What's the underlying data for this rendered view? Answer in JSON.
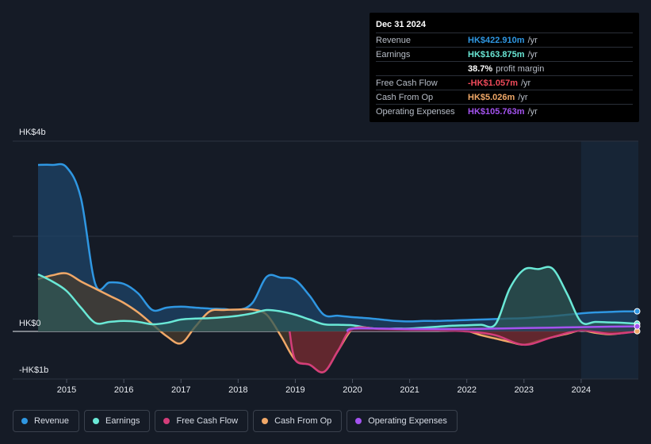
{
  "tooltip": {
    "date": "Dec 31 2024",
    "rows": [
      {
        "label": "Revenue",
        "value": "HK$422.910m",
        "unit": "/yr",
        "color": "#2f97e2"
      },
      {
        "label": "Earnings",
        "value": "HK$163.875m",
        "unit": "/yr",
        "color": "#6ae8d6"
      },
      {
        "label": "",
        "value": "38.7%",
        "unit": "profit margin",
        "color": "#ffffff"
      },
      {
        "label": "Free Cash Flow",
        "value": "-HK$1.057m",
        "unit": "/yr",
        "color": "#ef4a5a"
      },
      {
        "label": "Cash From Op",
        "value": "HK$5.026m",
        "unit": "/yr",
        "color": "#f0a868"
      },
      {
        "label": "Operating Expenses",
        "value": "HK$105.763m",
        "unit": "/yr",
        "color": "#a453f0"
      }
    ]
  },
  "legend": [
    {
      "label": "Revenue",
      "color": "#2f97e2"
    },
    {
      "label": "Earnings",
      "color": "#6ae8d6"
    },
    {
      "label": "Free Cash Flow",
      "color": "#d43d7a"
    },
    {
      "label": "Cash From Op",
      "color": "#f0a868"
    },
    {
      "label": "Operating Expenses",
      "color": "#a453f0"
    }
  ],
  "chart_data": {
    "type": "area",
    "title": "",
    "xlabel": "",
    "ylabel": "",
    "y_axis_labels": [
      "HK$4b",
      "HK$0",
      "-HK$1b"
    ],
    "y_axis_label_values": [
      4,
      0,
      -1
    ],
    "ylim": [
      -1,
      4
    ],
    "xlim": [
      2014.5,
      2025.0
    ],
    "x_ticks": [
      2015,
      2016,
      2017,
      2018,
      2019,
      2020,
      2021,
      2022,
      2023,
      2024
    ],
    "x_tick_labels": [
      "2015",
      "2016",
      "2017",
      "2018",
      "2019",
      "2020",
      "2021",
      "2022",
      "2023",
      "2024"
    ],
    "highlight_from": 2024.0,
    "units": "HK$ billions",
    "series": [
      {
        "name": "Revenue",
        "color": "#2f97e2",
        "x": [
          2014.5,
          2014.75,
          2015.0,
          2015.25,
          2015.5,
          2015.75,
          2016.0,
          2016.25,
          2016.5,
          2016.75,
          2017.0,
          2017.25,
          2017.5,
          2017.75,
          2018.0,
          2018.25,
          2018.5,
          2018.75,
          2019.0,
          2019.25,
          2019.5,
          2019.75,
          2020.0,
          2020.25,
          2020.5,
          2020.75,
          2021.0,
          2021.25,
          2021.5,
          2021.75,
          2022.0,
          2022.25,
          2022.5,
          2022.75,
          2023.0,
          2023.25,
          2023.5,
          2023.75,
          2024.0,
          2024.25,
          2024.5,
          2024.75,
          2024.98
        ],
        "values": [
          3.5,
          3.5,
          3.45,
          2.8,
          1.0,
          1.03,
          1.0,
          0.8,
          0.45,
          0.5,
          0.52,
          0.5,
          0.48,
          0.47,
          0.45,
          0.6,
          1.15,
          1.13,
          1.08,
          0.75,
          0.35,
          0.33,
          0.3,
          0.28,
          0.25,
          0.22,
          0.21,
          0.22,
          0.22,
          0.23,
          0.24,
          0.25,
          0.26,
          0.27,
          0.28,
          0.3,
          0.32,
          0.35,
          0.38,
          0.4,
          0.41,
          0.42,
          0.423
        ]
      },
      {
        "name": "Earnings",
        "color": "#6ae8d6",
        "x": [
          2014.5,
          2014.75,
          2015.0,
          2015.25,
          2015.5,
          2015.75,
          2016.0,
          2016.25,
          2016.5,
          2016.75,
          2017.0,
          2017.25,
          2017.5,
          2017.75,
          2018.0,
          2018.25,
          2018.5,
          2018.75,
          2019.0,
          2019.25,
          2019.5,
          2019.75,
          2020.0,
          2020.25,
          2020.5,
          2020.75,
          2021.0,
          2021.25,
          2021.5,
          2021.75,
          2022.0,
          2022.25,
          2022.5,
          2022.75,
          2023.0,
          2023.25,
          2023.5,
          2023.75,
          2024.0,
          2024.25,
          2024.5,
          2024.75,
          2024.98
        ],
        "values": [
          1.2,
          1.05,
          0.85,
          0.5,
          0.18,
          0.2,
          0.22,
          0.2,
          0.15,
          0.18,
          0.25,
          0.27,
          0.28,
          0.3,
          0.33,
          0.38,
          0.45,
          0.42,
          0.35,
          0.25,
          0.15,
          0.14,
          0.13,
          0.08,
          0.05,
          0.06,
          0.06,
          0.08,
          0.1,
          0.12,
          0.13,
          0.14,
          0.15,
          0.9,
          1.3,
          1.31,
          1.32,
          0.8,
          0.2,
          0.2,
          0.19,
          0.18,
          0.164
        ]
      },
      {
        "name": "Free Cash Flow",
        "color": "#d43d7a",
        "x": [
          2014.5,
          2015.0,
          2016.0,
          2017.0,
          2018.0,
          2018.9,
          2019.0,
          2019.25,
          2019.5,
          2019.75,
          2020.0,
          2020.5,
          2021.0,
          2021.5,
          2022.0,
          2022.5,
          2023.0,
          2023.5,
          2024.0,
          2024.5,
          2024.98
        ],
        "values": [
          null,
          null,
          null,
          null,
          null,
          0.0,
          -0.6,
          -0.7,
          -0.85,
          -0.4,
          0.05,
          0.05,
          0.03,
          0.02,
          0.0,
          -0.08,
          -0.28,
          -0.12,
          0.02,
          -0.05,
          -0.001
        ]
      },
      {
        "name": "Cash From Op",
        "color": "#f0a868",
        "x": [
          2014.5,
          2014.75,
          2015.0,
          2015.25,
          2015.5,
          2015.75,
          2016.0,
          2016.25,
          2016.5,
          2016.75,
          2017.0,
          2017.25,
          2017.5,
          2017.75,
          2018.0,
          2018.25,
          2018.5,
          2018.75,
          2019.0,
          2019.25,
          2019.5,
          2019.75,
          2020.0,
          2020.25,
          2020.5,
          2020.75,
          2021.0,
          2021.25,
          2021.5,
          2021.75,
          2022.0,
          2022.25,
          2022.5,
          2022.75,
          2023.0,
          2023.25,
          2023.5,
          2023.75,
          2024.0,
          2024.25,
          2024.5,
          2024.75,
          2024.98
        ],
        "values": [
          1.1,
          1.18,
          1.22,
          1.05,
          0.9,
          0.75,
          0.6,
          0.4,
          0.15,
          -0.1,
          -0.25,
          0.1,
          0.42,
          0.45,
          0.46,
          0.46,
          0.35,
          -0.1,
          -0.6,
          -0.7,
          -0.85,
          -0.4,
          0.05,
          0.06,
          0.05,
          0.04,
          0.03,
          0.03,
          0.02,
          0.02,
          0.01,
          -0.08,
          -0.15,
          -0.22,
          -0.28,
          -0.2,
          -0.12,
          -0.05,
          0.02,
          -0.03,
          -0.06,
          -0.03,
          0.005
        ]
      },
      {
        "name": "Operating Expenses",
        "color": "#a453f0",
        "x": [
          2019.9,
          2020.0,
          2020.5,
          2021.0,
          2021.5,
          2022.0,
          2022.5,
          2023.0,
          2023.5,
          2024.0,
          2024.5,
          2024.98
        ],
        "values": [
          0.0,
          0.06,
          0.06,
          0.05,
          0.05,
          0.05,
          0.06,
          0.07,
          0.08,
          0.09,
          0.1,
          0.106
        ]
      }
    ]
  }
}
